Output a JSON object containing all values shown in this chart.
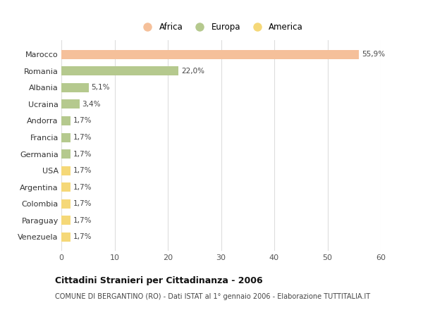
{
  "countries": [
    "Marocco",
    "Romania",
    "Albania",
    "Ucraina",
    "Andorra",
    "Francia",
    "Germania",
    "USA",
    "Argentina",
    "Colombia",
    "Paraguay",
    "Venezuela"
  ],
  "values": [
    55.9,
    22.0,
    5.1,
    3.4,
    1.7,
    1.7,
    1.7,
    1.7,
    1.7,
    1.7,
    1.7,
    1.7
  ],
  "labels": [
    "55,9%",
    "22,0%",
    "5,1%",
    "3,4%",
    "1,7%",
    "1,7%",
    "1,7%",
    "1,7%",
    "1,7%",
    "1,7%",
    "1,7%",
    "1,7%"
  ],
  "colors": [
    "#F5C09A",
    "#B5C98E",
    "#B5C98E",
    "#B5C98E",
    "#B5C98E",
    "#B5C98E",
    "#B5C98E",
    "#F5D878",
    "#F5D878",
    "#F5D878",
    "#F5D878",
    "#F5D878"
  ],
  "legend_labels": [
    "Africa",
    "Europa",
    "America"
  ],
  "legend_colors": [
    "#F5C09A",
    "#B5C98E",
    "#F5D878"
  ],
  "title_bold": "Cittadini Stranieri per Cittadinanza - 2006",
  "subtitle": "COMUNE DI BERGANTINO (RO) - Dati ISTAT al 1° gennaio 2006 - Elaborazione TUTTITALIA.IT",
  "xlim": [
    0,
    60
  ],
  "xticks": [
    0,
    10,
    20,
    30,
    40,
    50,
    60
  ],
  "background_color": "#ffffff",
  "grid_color": "#dddddd",
  "bar_height": 0.55
}
